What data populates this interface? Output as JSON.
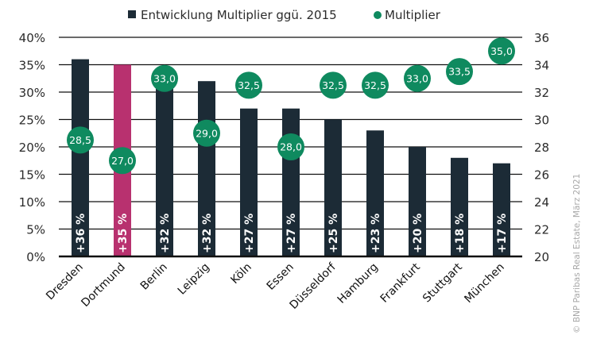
{
  "chart_data": {
    "type": "bar",
    "title": "",
    "categories": [
      "Dresden",
      "Dortmund",
      "Berlin",
      "Leipzig",
      "Köln",
      "Essen",
      "Düsseldorf",
      "Hamburg",
      "Frankfurt",
      "Stuttgart",
      "München"
    ],
    "highlight_category": "Dortmund",
    "series": [
      {
        "name": "Entwicklung Multiplier ggü. 2015",
        "kind": "bar",
        "axis": "left",
        "values": [
          36,
          35,
          32,
          32,
          27,
          27,
          25,
          23,
          20,
          18,
          17
        ],
        "labels": [
          "+36 %",
          "+35 %",
          "+32 %",
          "+32 %",
          "+27 %",
          "+27 %",
          "+25 %",
          "+23 %",
          "+20 %",
          "+18 %",
          "+17 %"
        ]
      },
      {
        "name": "Multiplier",
        "kind": "dot",
        "axis": "right",
        "values": [
          28.5,
          27.0,
          33.0,
          29.0,
          32.5,
          28.0,
          32.5,
          32.5,
          33.0,
          33.5,
          35.0
        ],
        "labels": [
          "28,5",
          "27,0",
          "33,0",
          "29,0",
          "32,5",
          "28,0",
          "32,5",
          "32,5",
          "33,0",
          "33,5",
          "35,0"
        ]
      }
    ],
    "left_axis": {
      "ylim": [
        0,
        40
      ],
      "ticks": [
        0,
        5,
        10,
        15,
        20,
        25,
        30,
        35,
        40
      ],
      "tick_labels": [
        "0%",
        "5%",
        "10%",
        "15%",
        "20%",
        "25%",
        "30%",
        "35%",
        "40%"
      ]
    },
    "right_axis": {
      "ylim": [
        20,
        36
      ],
      "ticks": [
        20,
        22,
        24,
        26,
        28,
        30,
        32,
        34,
        36
      ],
      "tick_labels": [
        "20",
        "22",
        "24",
        "26",
        "28",
        "30",
        "32",
        "34",
        "36"
      ]
    },
    "xlabel": "",
    "ylabel": "",
    "grid": true,
    "legend": {
      "position": "top-center",
      "entries": [
        {
          "label": "Entwicklung Multiplier ggü. 2015",
          "marker": "square"
        },
        {
          "label": "Multiplier",
          "marker": "circle"
        }
      ]
    },
    "credit": "© BNP Paribas Real Estate, März 2021"
  },
  "colors": {
    "bar": "#1c2b36",
    "bar_highlight": "#b8316f",
    "dot": "#0f8a5f",
    "grid": "#111111",
    "credit": "#a8a8a8"
  }
}
